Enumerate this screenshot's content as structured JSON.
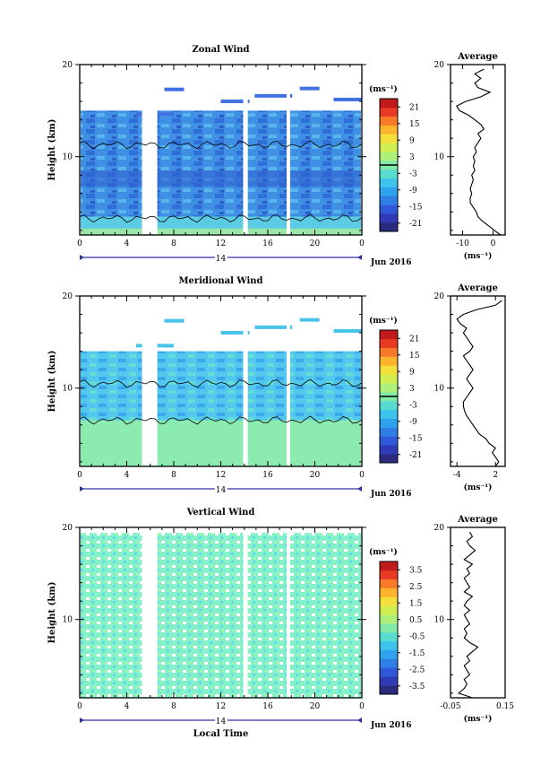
{
  "colors": {
    "cmap": [
      "#2a2a7e",
      "#2f3bb6",
      "#2f58da",
      "#2f7ee6",
      "#2ea2ec",
      "#3cc4ec",
      "#58dcd0",
      "#80eaa6",
      "#aef07a",
      "#d2ee50",
      "#f4e03a",
      "#fcb42c",
      "#f87a28",
      "#e83a24",
      "#c01a1a"
    ],
    "zonal_fill": "#4aa0e8",
    "meridional_fill": "#4cd6ec",
    "vertical_fill": "#7ef2cc",
    "axis": "#000000",
    "date_axis": "#3030a0"
  },
  "chart_data": [
    {
      "type": "heatmap",
      "title": "Zonal Wind",
      "ylabel": "Height (km)",
      "yticks": [
        "10",
        "20"
      ],
      "xticks": [
        "0",
        "4",
        "8",
        "12",
        "16",
        "20",
        "0"
      ],
      "date_label": "14",
      "month_label": "Jun 2016",
      "xlim": [
        0,
        24
      ],
      "ylim": [
        1.5,
        20
      ],
      "colorbar_unit": "(ms⁻¹)",
      "colorbar_ticks": [
        "21",
        "15",
        "9",
        "3",
        "-3",
        "-9",
        "-15",
        "-21"
      ],
      "colorbar_range": [
        -24,
        24
      ],
      "data_gaps_hours": [
        [
          5.3,
          6.6
        ],
        [
          13.9,
          14.3
        ],
        [
          17.6,
          17.9
        ]
      ]
    },
    {
      "type": "line",
      "title": "Average",
      "xticks": [
        "-10",
        "0"
      ],
      "xlabel": "(ms⁻¹)",
      "yticks": [
        "10",
        "20"
      ],
      "xlim": [
        -14,
        4
      ],
      "ylim": [
        1.5,
        20
      ],
      "series": [
        {
          "x": [
            2.5,
            0.5,
            -1.5,
            -3.5,
            -5,
            -5.5,
            -6.5,
            -7.5,
            -7.5,
            -7,
            -7.5,
            -7,
            -6.5,
            -7,
            -6,
            -6.5,
            -6,
            -6.5,
            -5.5,
            -6,
            -5,
            -4,
            -5,
            -3,
            -4,
            -6,
            -8,
            -11,
            -12,
            -9,
            -4,
            -1,
            -5,
            -6,
            -4,
            -6,
            -3
          ],
          "y": [
            1.5,
            2,
            2.5,
            3,
            3.5,
            4,
            4.5,
            5,
            5.5,
            6,
            6.5,
            7,
            7.5,
            8,
            8.5,
            9,
            9.5,
            10,
            10.5,
            11,
            11.5,
            12,
            12.5,
            13,
            13.5,
            14,
            14.5,
            15,
            15.5,
            16,
            16.5,
            17,
            17.5,
            18,
            18.5,
            19,
            19.5
          ]
        }
      ]
    },
    {
      "type": "heatmap",
      "title": "Meridional Wind",
      "ylabel": "Height (km)",
      "yticks": [
        "10",
        "20"
      ],
      "xticks": [
        "0",
        "4",
        "8",
        "12",
        "16",
        "20",
        "0"
      ],
      "date_label": "14",
      "month_label": "Jun 2016",
      "xlim": [
        0,
        24
      ],
      "ylim": [
        1.5,
        20
      ],
      "colorbar_unit": "(ms⁻¹)",
      "colorbar_ticks": [
        "21",
        "15",
        "9",
        "3",
        "-3",
        "-9",
        "-15",
        "-21"
      ],
      "colorbar_range": [
        -24,
        24
      ],
      "data_gaps_hours": [
        [
          5.3,
          6.6
        ],
        [
          13.9,
          14.3
        ],
        [
          17.6,
          17.9
        ]
      ]
    },
    {
      "type": "line",
      "title": "Average",
      "xticks": [
        "-4",
        "2"
      ],
      "xlabel": "(ms⁻¹)",
      "yticks": [
        "10",
        "20"
      ],
      "xlim": [
        -5,
        3.5
      ],
      "ylim": [
        1.5,
        20
      ],
      "series": [
        {
          "x": [
            2,
            2.5,
            2,
            1.5,
            2,
            1,
            0.5,
            -0.5,
            -1,
            -1.5,
            -2,
            -2.5,
            -2.8,
            -3,
            -3,
            -2.5,
            -2,
            -1.5,
            -2,
            -2.5,
            -2,
            -1.5,
            -2,
            -2.5,
            -3,
            -2,
            -1.5,
            -2,
            -2.5,
            -3,
            -2.5,
            -3.5,
            -4,
            -3,
            -1,
            2,
            3
          ],
          "y": [
            1.5,
            2,
            2.5,
            3,
            3.5,
            4,
            4.5,
            5,
            5.5,
            6,
            6.5,
            7,
            7.5,
            8,
            8.5,
            9,
            9.5,
            10,
            10.5,
            11,
            11.5,
            12,
            12.5,
            13,
            13.5,
            14,
            14.5,
            15,
            15.5,
            16,
            16.5,
            17,
            17.5,
            18,
            18.5,
            19,
            19.5
          ]
        }
      ]
    },
    {
      "type": "heatmap",
      "title": "Vertical Wind",
      "ylabel": "Height (km)",
      "yticks": [
        "10",
        "20"
      ],
      "xticks": [
        "0",
        "4",
        "8",
        "12",
        "16",
        "20",
        "0"
      ],
      "date_label": "14",
      "month_label": "Jun 2016",
      "xlabel": "Local Time",
      "xlim": [
        0,
        24
      ],
      "ylim": [
        1.5,
        20
      ],
      "colorbar_unit": "(ms⁻¹)",
      "colorbar_ticks": [
        "3.5",
        "2.5",
        "1.5",
        "0.5",
        "-0.5",
        "-1.5",
        "-2.5",
        "-3.5"
      ],
      "colorbar_range": [
        -4,
        4
      ],
      "data_gaps_hours": [
        [
          5.3,
          6.6
        ],
        [
          13.9,
          14.3
        ],
        [
          17.6,
          17.9
        ]
      ]
    },
    {
      "type": "line",
      "title": "Average",
      "xticks": [
        "-0.05",
        "0.15"
      ],
      "xlabel": "(ms⁻¹)",
      "yticks": [
        "10",
        "20"
      ],
      "xlim": [
        -0.05,
        0.15
      ],
      "ylim": [
        1.5,
        20
      ],
      "series": [
        {
          "x": [
            0.03,
            -0.02,
            0.0,
            0.01,
            0.0,
            0.02,
            0.01,
            0.0,
            0.02,
            0.01,
            0.03,
            0.05,
            0.02,
            0.0,
            0.01,
            0.0,
            0.02,
            0.01,
            0.0,
            0.02,
            0.0,
            0.01,
            0.03,
            0.0,
            0.02,
            0.01,
            0.0,
            0.02,
            0.01,
            0.03,
            0.0,
            0.02,
            0.04,
            0.02,
            0.01,
            0.03,
            0.02
          ],
          "y": [
            1.5,
            2,
            2.5,
            3,
            3.5,
            4,
            4.5,
            5,
            5.5,
            6,
            6.5,
            7,
            7.5,
            8,
            8.5,
            9,
            9.5,
            10,
            10.5,
            11,
            11.5,
            12,
            12.5,
            13,
            13.5,
            14,
            14.5,
            15,
            15.5,
            16,
            16.5,
            17,
            17.5,
            18,
            18.5,
            19,
            19.5
          ]
        }
      ]
    }
  ]
}
